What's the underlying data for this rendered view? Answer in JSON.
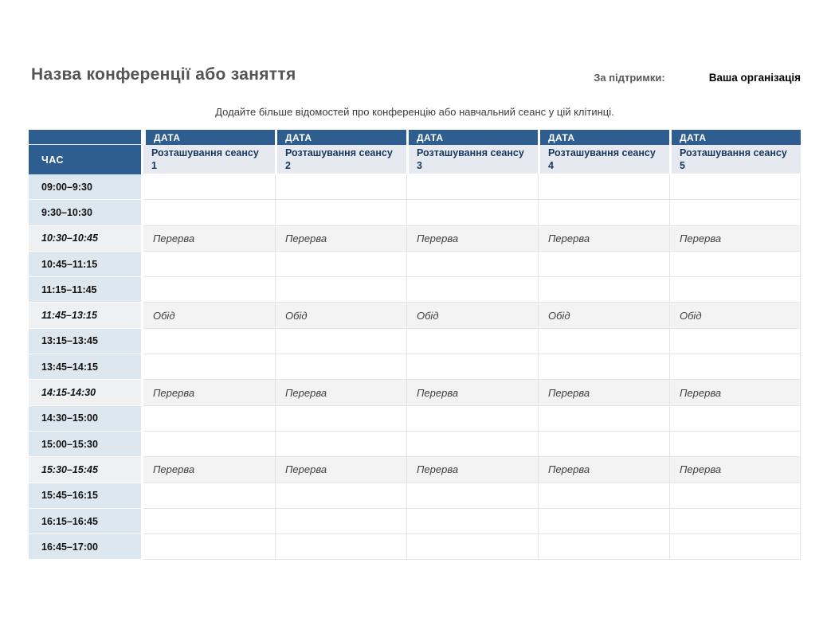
{
  "header": {
    "title": "Назва конференції або заняття",
    "supported_by_label": "За підтримки:",
    "organization": "Ваша організація",
    "subtitle": "Додайте більше відомостей про конференцію або навчальний сеанс у цій клітинці."
  },
  "schedule": {
    "time_header_label": "ЧАС",
    "columns": [
      {
        "date_label": "ДАТА",
        "session_label": "Розташування сеансу 1"
      },
      {
        "date_label": "ДАТА",
        "session_label": "Розташування сеансу 2"
      },
      {
        "date_label": "ДАТА",
        "session_label": "Розташування сеансу 3"
      },
      {
        "date_label": "ДАТА",
        "session_label": "Розташування сеансу 4"
      },
      {
        "date_label": "ДАТА",
        "session_label": "Розташування сеансу 5"
      }
    ],
    "rows": [
      {
        "time": "09:00–9:30",
        "type": "session",
        "cells": [
          "",
          "",
          "",
          "",
          ""
        ]
      },
      {
        "time": "9:30–10:30",
        "type": "session",
        "cells": [
          "",
          "",
          "",
          "",
          ""
        ]
      },
      {
        "time": "10:30–10:45",
        "type": "break",
        "cells": [
          "Перерва",
          "Перерва",
          "Перерва",
          "Перерва",
          "Перерва"
        ]
      },
      {
        "time": "10:45–11:15",
        "type": "session",
        "cells": [
          "",
          "",
          "",
          "",
          ""
        ]
      },
      {
        "time": "11:15–11:45",
        "type": "session",
        "cells": [
          "",
          "",
          "",
          "",
          ""
        ]
      },
      {
        "time": "11:45–13:15",
        "type": "break",
        "cells": [
          "Обід",
          "Обід",
          "Обід",
          "Обід",
          "Обід"
        ]
      },
      {
        "time": "13:15–13:45",
        "type": "session",
        "cells": [
          "",
          "",
          "",
          "",
          ""
        ]
      },
      {
        "time": "13:45–14:15",
        "type": "session",
        "cells": [
          "",
          "",
          "",
          "",
          ""
        ]
      },
      {
        "time": "14:15-14:30",
        "type": "break",
        "cells": [
          "Перерва",
          "Перерва",
          "Перерва",
          "Перерва",
          "Перерва"
        ]
      },
      {
        "time": "14:30–15:00",
        "type": "session",
        "cells": [
          "",
          "",
          "",
          "",
          ""
        ]
      },
      {
        "time": "15:00–15:30",
        "type": "session",
        "cells": [
          "",
          "",
          "",
          "",
          ""
        ]
      },
      {
        "time": "15:30–15:45",
        "type": "break",
        "cells": [
          "Перерва",
          "Перерва",
          "Перерва",
          "Перерва",
          "Перерва"
        ]
      },
      {
        "time": "15:45–16:15",
        "type": "session",
        "cells": [
          "",
          "",
          "",
          "",
          ""
        ]
      },
      {
        "time": "16:15–16:45",
        "type": "session",
        "cells": [
          "",
          "",
          "",
          "",
          ""
        ]
      },
      {
        "time": "16:45–17:00",
        "type": "session",
        "cells": [
          "",
          "",
          "",
          "",
          ""
        ]
      }
    ]
  },
  "colors": {
    "header_blue": "#2e5e90",
    "time_column_blue": "#dde7f0",
    "session_header_bg": "#e6eaf0",
    "session_text_navy": "#17375e",
    "break_row_bg": "#f3f3f4",
    "break_time_bg": "#eff0f2",
    "grid_line": "#e2e5e9",
    "title_gray": "#545454"
  }
}
